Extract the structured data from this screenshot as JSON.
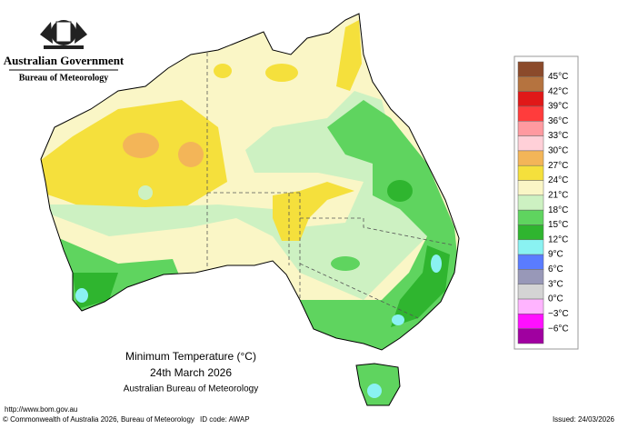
{
  "header": {
    "agency": "Australian Government",
    "bureau": "Bureau of Meteorology"
  },
  "map": {
    "title": "Minimum Temperature (°C)",
    "date": "24th March 2026",
    "source": "Australian Bureau of Meteorology"
  },
  "legend": {
    "labels": [
      "45°C",
      "42°C",
      "39°C",
      "36°C",
      "33°C",
      "30°C",
      "27°C",
      "24°C",
      "21°C",
      "18°C",
      "15°C",
      "12°C",
      "9°C",
      "6°C",
      "3°C",
      "0°C",
      "−3°C",
      "−6°C"
    ],
    "colors": [
      "#8b4a2b",
      "#b5733f",
      "#e01818",
      "#ff3c3c",
      "#ff9aa0",
      "#ffd0d8",
      "#f3b558",
      "#f5e03c",
      "#faf6c6",
      "#cdf1c2",
      "#5fd45f",
      "#2fb52f",
      "#8af2f2",
      "#5a7cff",
      "#9898b8",
      "#d4d4d4",
      "#ffb4ff",
      "#ff10ff",
      "#a000a0"
    ]
  },
  "footer": {
    "url": "http://www.bom.gov.au",
    "copyright": "© Commonwealth of Australia 2026, Bureau of Meteorology",
    "id": "ID code: AWAP",
    "issued": "Issued: 24/03/2026"
  }
}
